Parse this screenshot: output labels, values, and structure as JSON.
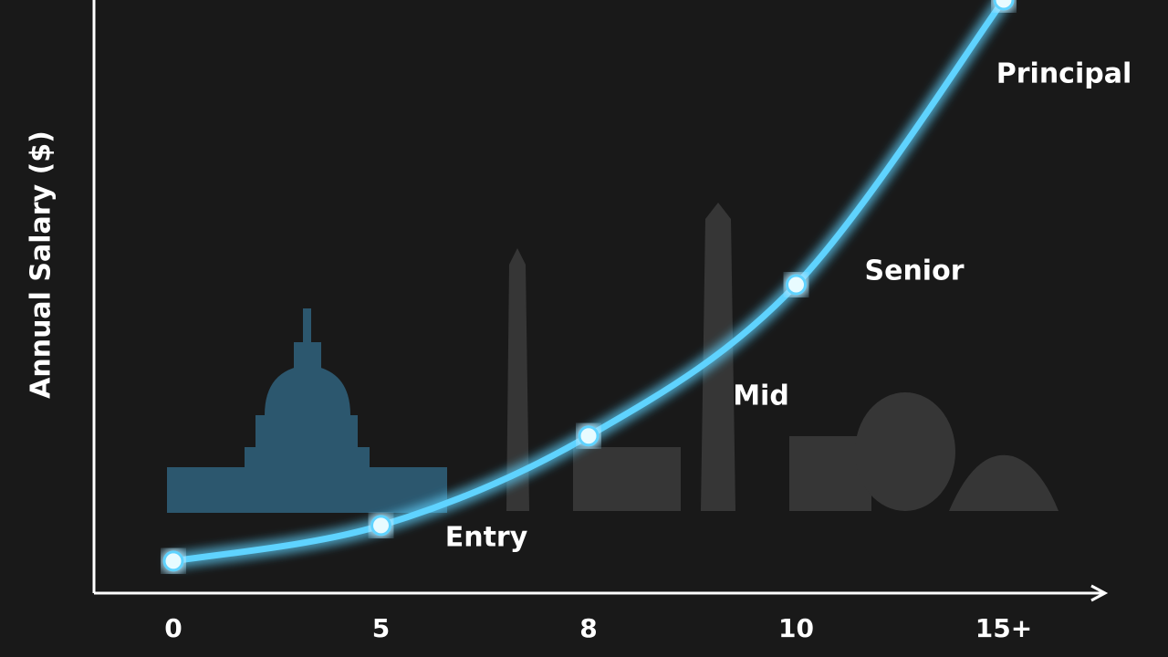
{
  "chart_data": {
    "type": "line",
    "y_label": "Annual Salary ($)",
    "categories": [
      "0",
      "5",
      "8",
      "10",
      "15+"
    ],
    "values": [
      5.4,
      11.4,
      26.5,
      52,
      100
    ],
    "color": "#5fd3ff",
    "ylim": [
      0,
      100
    ],
    "annotations": [
      "Entry",
      "Mid",
      "Senior",
      "Principal"
    ]
  }
}
